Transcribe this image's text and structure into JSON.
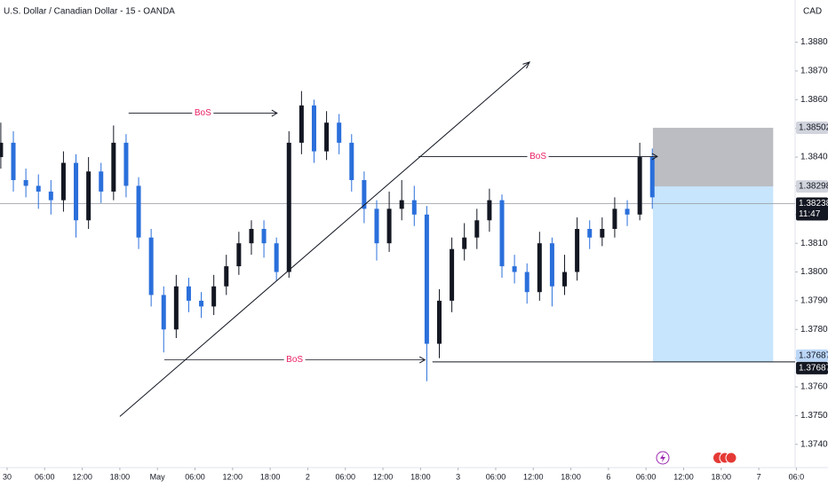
{
  "chart_data": {
    "type": "candlestick",
    "title": "U.S. Dollar / Canadian Dollar - 15 - OANDA",
    "currency": "CAD",
    "up_color": "#131722",
    "down_color": "#2a6fdb",
    "grid": false,
    "x": [
      -1,
      1,
      3,
      5,
      7,
      9,
      11,
      13,
      15,
      17,
      19,
      21,
      23,
      25,
      27,
      29,
      31,
      33,
      35,
      37,
      39,
      41,
      43,
      45,
      47,
      49,
      51,
      53,
      55,
      57,
      59,
      61,
      63,
      65,
      67,
      69,
      71,
      73,
      75,
      77,
      79,
      81,
      83,
      85,
      87,
      89,
      91,
      93,
      95,
      97,
      99,
      101,
      103
    ],
    "open": [
      1.384,
      1.3845,
      1.3832,
      1.383,
      1.3828,
      1.3825,
      1.3838,
      1.3818,
      1.3835,
      1.3828,
      1.3845,
      1.383,
      1.3812,
      1.3792,
      1.378,
      1.3795,
      1.379,
      1.3788,
      1.3795,
      1.3802,
      1.381,
      1.3815,
      1.381,
      1.38,
      1.3845,
      1.3858,
      1.3842,
      1.3852,
      1.3845,
      1.3832,
      1.3822,
      1.381,
      1.3822,
      1.3825,
      1.382,
      1.3775,
      1.379,
      1.3808,
      1.3812,
      1.3818,
      1.3825,
      1.3802,
      1.38,
      1.3793,
      1.381,
      1.3795,
      1.38,
      1.3815,
      1.3812,
      1.3815,
      1.3822,
      1.382,
      1.384
    ],
    "high": [
      1.3852,
      1.3849,
      1.3836,
      1.3834,
      1.3832,
      1.3842,
      1.3841,
      1.384,
      1.3838,
      1.3851,
      1.3848,
      1.3833,
      1.3815,
      1.3795,
      1.3799,
      1.3798,
      1.3793,
      1.3799,
      1.3806,
      1.3814,
      1.3818,
      1.3818,
      1.3812,
      1.3849,
      1.3863,
      1.386,
      1.3856,
      1.3855,
      1.3848,
      1.3835,
      1.3825,
      1.3828,
      1.3832,
      1.383,
      1.3823,
      1.3794,
      1.3812,
      1.3817,
      1.3822,
      1.3829,
      1.3827,
      1.3806,
      1.3803,
      1.3814,
      1.3812,
      1.3806,
      1.3819,
      1.3818,
      1.3819,
      1.3826,
      1.3825,
      1.3845,
      1.3843
    ],
    "low": [
      1.3836,
      1.3828,
      1.3826,
      1.3822,
      1.382,
      1.3821,
      1.3812,
      1.3815,
      1.3824,
      1.3825,
      1.3826,
      1.3808,
      1.3788,
      1.3772,
      1.3777,
      1.3786,
      1.3784,
      1.3785,
      1.3792,
      1.3799,
      1.3806,
      1.3805,
      1.3797,
      1.3798,
      1.3841,
      1.3838,
      1.3839,
      1.3841,
      1.3828,
      1.3817,
      1.3804,
      1.3807,
      1.3818,
      1.3816,
      1.3762,
      1.377,
      1.3786,
      1.3804,
      1.3808,
      1.3814,
      1.3798,
      1.3796,
      1.3789,
      1.379,
      1.3788,
      1.3792,
      1.3797,
      1.3808,
      1.3809,
      1.3812,
      1.3816,
      1.3818,
      1.3822
    ],
    "close": [
      1.3845,
      1.3832,
      1.383,
      1.3828,
      1.3825,
      1.3838,
      1.3818,
      1.3835,
      1.3828,
      1.3845,
      1.383,
      1.3812,
      1.3792,
      1.378,
      1.3795,
      1.379,
      1.3788,
      1.3795,
      1.3802,
      1.381,
      1.3815,
      1.381,
      1.38,
      1.3845,
      1.3858,
      1.3842,
      1.3852,
      1.3845,
      1.3832,
      1.3822,
      1.381,
      1.3822,
      1.3825,
      1.382,
      1.3775,
      1.379,
      1.3808,
      1.3812,
      1.3818,
      1.3825,
      1.3802,
      1.38,
      1.3793,
      1.381,
      1.3795,
      1.38,
      1.3815,
      1.3812,
      1.3815,
      1.3822,
      1.382,
      1.384,
      1.3826
    ],
    "xlim": [
      -1.13,
      125.8
    ],
    "xticks": [
      {
        "value": 0,
        "label": "30"
      },
      {
        "value": 6,
        "label": "06:00"
      },
      {
        "value": 12,
        "label": "12:00"
      },
      {
        "value": 18,
        "label": "18:00"
      },
      {
        "value": 24,
        "label": "May"
      },
      {
        "value": 30,
        "label": "06:00"
      },
      {
        "value": 36,
        "label": "12:00"
      },
      {
        "value": 42,
        "label": "18:00"
      },
      {
        "value": 48,
        "label": "2"
      },
      {
        "value": 54,
        "label": "06:00"
      },
      {
        "value": 60,
        "label": "12:00"
      },
      {
        "value": 66,
        "label": "18:00"
      },
      {
        "value": 72,
        "label": "3"
      },
      {
        "value": 78,
        "label": "06:00"
      },
      {
        "value": 84,
        "label": "12:00"
      },
      {
        "value": 90,
        "label": "18:00"
      },
      {
        "value": 96,
        "label": "6"
      },
      {
        "value": 102,
        "label": "06:00"
      },
      {
        "value": 108,
        "label": "12:00"
      },
      {
        "value": 114,
        "label": "18:00"
      },
      {
        "value": 120,
        "label": "7"
      },
      {
        "value": 126,
        "label": "06:0"
      }
    ],
    "ylim": [
      1.37319,
      1.38947
    ],
    "yticks": [
      {
        "value": 1.374,
        "label": "1.37400"
      },
      {
        "value": 1.375,
        "label": "1.37500"
      },
      {
        "value": 1.376,
        "label": "1.37600"
      },
      {
        "value": 1.377,
        "label": "1.37700"
      },
      {
        "value": 1.378,
        "label": "1.37800"
      },
      {
        "value": 1.379,
        "label": "1.37900"
      },
      {
        "value": 1.38,
        "label": "1.38000"
      },
      {
        "value": 1.381,
        "label": "1.38100"
      },
      {
        "value": 1.382,
        "label": "1.38200"
      },
      {
        "value": 1.383,
        "label": "1.38300"
      },
      {
        "value": 1.384,
        "label": "1.38400"
      },
      {
        "value": 1.385,
        "label": "1.38500"
      },
      {
        "value": 1.386,
        "label": "1.38600"
      },
      {
        "value": 1.387,
        "label": "1.38700"
      },
      {
        "value": 1.388,
        "label": "1.38800"
      }
    ],
    "annotations": [
      {
        "label": "BoS",
        "x": [
          19.4,
          43.1
        ],
        "y": 1.38553
      },
      {
        "label": "BoS",
        "x": [
          65.7,
          103.8
        ],
        "y": 1.38402
      },
      {
        "label": "BoS",
        "x": [
          25.1,
          66.7
        ],
        "y": 1.37694
      }
    ],
    "trendline": {
      "x": [
        18.0,
        83.4
      ],
      "y": [
        1.37497,
        1.38731
      ]
    },
    "support_line": {
      "y": 1.37687,
      "x_start": 67.9
    },
    "position": {
      "stop": 1.38502,
      "entry": 1.38298,
      "target": 1.37687,
      "start_x": 103.1,
      "end_x": 122.3
    },
    "last_price": {
      "value": 1.38238,
      "label": "1.38238"
    },
    "countdown": "11:47",
    "price_labels": [
      {
        "value": 1.38502,
        "label": "1.38502",
        "color": "#d1d4dc"
      },
      {
        "value": 1.38298,
        "label": "1.38298",
        "color": "#d1d4dc"
      },
      {
        "value": 1.37687,
        "label": "1.37687",
        "color": "#bbd6f7"
      }
    ],
    "support_label": {
      "value": 1.37687,
      "label": "1.37687"
    }
  }
}
